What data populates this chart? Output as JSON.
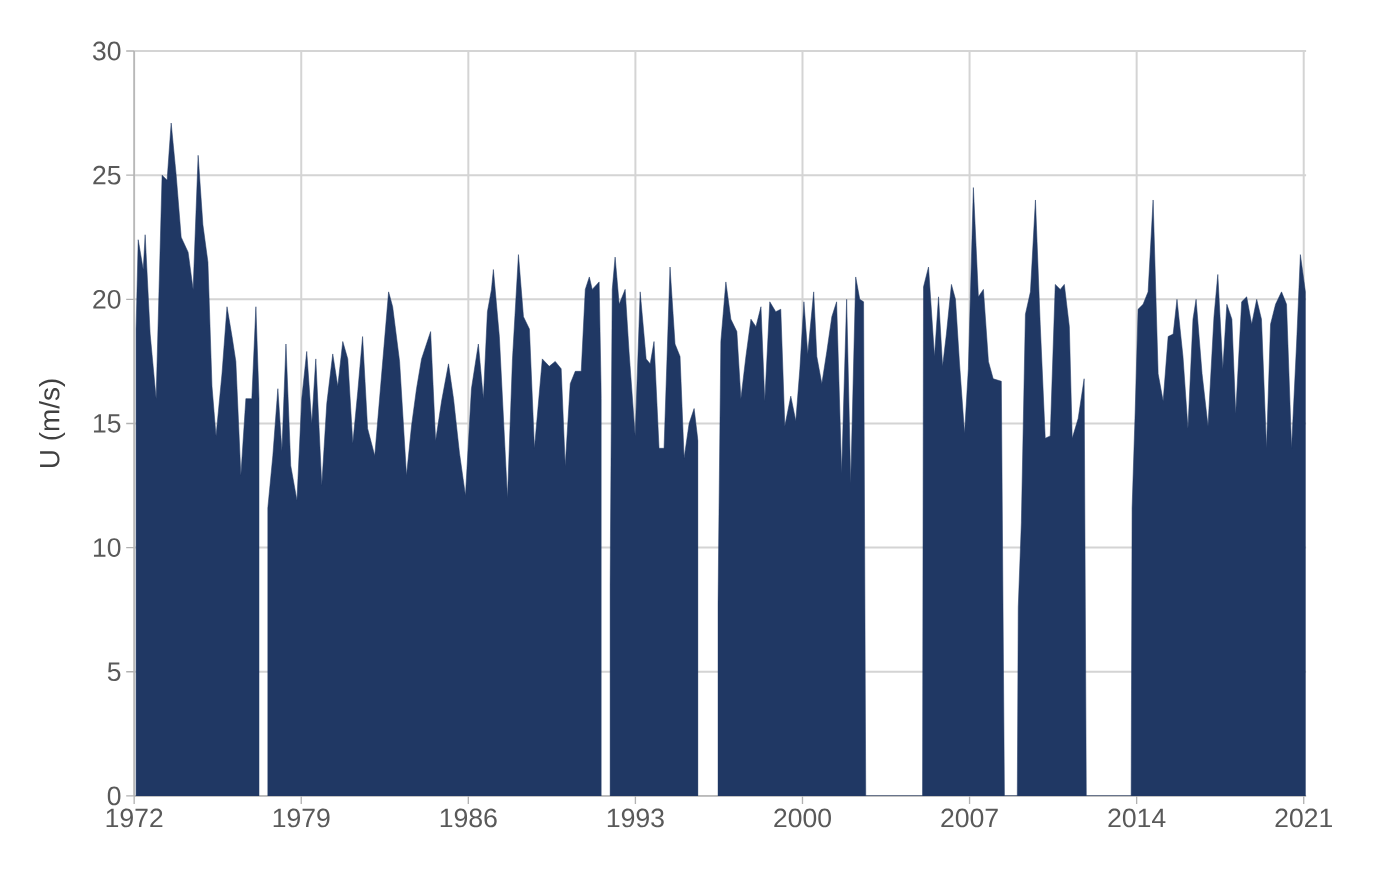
{
  "chart_data": {
    "type": "area",
    "ylabel": "U (m/s)",
    "xlim": [
      1972,
      2021.1
    ],
    "ylim": [
      0,
      30
    ],
    "xticks": [
      1972,
      1979,
      1986,
      1993,
      2000,
      2007,
      2014,
      2021
    ],
    "yticks": [
      0,
      5,
      10,
      15,
      20,
      25,
      30
    ],
    "grid": true,
    "series": [
      {
        "color": "#203864",
        "x": [
          1972.08,
          1972.17,
          1972.38,
          1972.46,
          1972.67,
          1972.92,
          1973.17,
          1973.38,
          1973.55,
          1973.76,
          1973.97,
          1974.26,
          1974.47,
          1974.68,
          1974.88,
          1975.09,
          1975.26,
          1975.43,
          1975.68,
          1975.89,
          1976.1,
          1976.26,
          1976.47,
          1976.68,
          1976.93,
          1977.1,
          1977.23,
          1977.39,
          1977.6,
          1977.81,
          1978.02,
          1978.19,
          1978.36,
          1978.56,
          1978.82,
          1979.02,
          1979.23,
          1979.44,
          1979.61,
          1979.86,
          1980.07,
          1980.32,
          1980.53,
          1980.74,
          1980.95,
          1981.16,
          1981.37,
          1981.57,
          1981.78,
          1982.08,
          1982.66,
          1982.83,
          1983.12,
          1983.41,
          1983.62,
          1983.83,
          1984.04,
          1984.42,
          1984.63,
          1984.88,
          1985.17,
          1985.38,
          1985.63,
          1985.88,
          1986.13,
          1986.42,
          1986.63,
          1986.8,
          1986.97,
          1987.05,
          1987.3,
          1987.64,
          1987.85,
          1988.1,
          1988.31,
          1988.56,
          1988.77,
          1989.1,
          1989.39,
          1989.64,
          1989.89,
          1990.06,
          1990.27,
          1990.48,
          1990.73,
          1990.9,
          1991.07,
          1991.19,
          1991.48,
          1991.57,
          1991.73,
          1991.94,
          1992.03,
          1992.15,
          1992.32,
          1992.57,
          1992.74,
          1992.99,
          1993.2,
          1993.45,
          1993.62,
          1993.78,
          1993.99,
          1994.2,
          1994.45,
          1994.66,
          1994.87,
          1995.04,
          1995.25,
          1995.46,
          1995.62,
          1996.08,
          1996.46,
          1996.58,
          1996.79,
          1997.0,
          1997.25,
          1997.42,
          1997.63,
          1997.84,
          1998.05,
          1998.26,
          1998.42,
          1998.63,
          1998.88,
          1999.09,
          1999.26,
          1999.51,
          1999.72,
          1999.89,
          2000.06,
          2000.22,
          2000.47,
          2000.6,
          2000.81,
          2001.02,
          2001.23,
          2001.43,
          2001.64,
          2001.85,
          2002.02,
          2002.23,
          2002.4,
          2002.56,
          2002.65,
          2005.03,
          2005.07,
          2005.28,
          2005.53,
          2005.7,
          2005.87,
          2006.03,
          2006.24,
          2006.41,
          2006.58,
          2006.79,
          2006.95,
          2007.16,
          2007.37,
          2007.58,
          2007.79,
          2007.99,
          2008.33,
          2008.46,
          2009.0,
          2009.04,
          2009.17,
          2009.34,
          2009.55,
          2009.76,
          2009.96,
          2010.17,
          2010.38,
          2010.59,
          2010.8,
          2010.97,
          2011.18,
          2011.3,
          2011.55,
          2011.8,
          2011.89,
          2013.77,
          2013.81,
          2013.94,
          2014.06,
          2014.27,
          2014.48,
          2014.69,
          2014.9,
          2015.11,
          2015.32,
          2015.53,
          2015.69,
          2015.94,
          2016.15,
          2016.36,
          2016.49,
          2016.74,
          2016.99,
          2017.24,
          2017.4,
          2017.61,
          2017.78,
          2017.99,
          2018.15,
          2018.4,
          2018.61,
          2018.82,
          2019.03,
          2019.23,
          2019.44,
          2019.61,
          2019.82,
          2020.07,
          2020.28,
          2020.49,
          2020.7,
          2020.86,
          2021.07
        ],
        "values": [
          18.8,
          22.4,
          21.2,
          22.6,
          18.6,
          16.0,
          25.0,
          24.8,
          27.1,
          25.0,
          22.5,
          21.9,
          20.4,
          25.8,
          23.0,
          21.5,
          16.5,
          14.5,
          17.0,
          19.7,
          18.5,
          17.5,
          12.9,
          16.0,
          16.0,
          19.7,
          16.0,
          null,
          11.6,
          13.7,
          16.4,
          13.9,
          18.2,
          13.3,
          11.9,
          16.0,
          17.9,
          15.0,
          17.6,
          12.5,
          15.8,
          17.8,
          16.5,
          18.3,
          17.6,
          14.2,
          16.3,
          18.5,
          14.8,
          13.7,
          20.3,
          19.7,
          17.5,
          12.9,
          14.9,
          16.4,
          17.6,
          18.7,
          14.3,
          15.9,
          17.4,
          16.0,
          13.8,
          12.1,
          16.4,
          18.2,
          16.0,
          19.5,
          20.4,
          21.2,
          18.5,
          12.0,
          17.6,
          21.8,
          19.3,
          18.8,
          14.0,
          17.6,
          17.3,
          17.5,
          17.2,
          13.3,
          16.6,
          17.1,
          17.1,
          20.4,
          20.9,
          20.4,
          20.7,
          16.0,
          null,
          8.5,
          20.4,
          21.7,
          19.8,
          20.4,
          17.8,
          14.5,
          20.3,
          17.6,
          17.4,
          18.3,
          14.0,
          14.0,
          21.3,
          18.2,
          17.7,
          13.6,
          15.0,
          15.6,
          14.3,
          null,
          7.7,
          18.3,
          20.7,
          19.2,
          18.7,
          16.0,
          17.7,
          19.2,
          18.9,
          19.7,
          15.9,
          19.9,
          19.5,
          19.6,
          14.9,
          16.1,
          15.1,
          17.2,
          19.9,
          17.8,
          20.3,
          17.7,
          16.6,
          17.9,
          19.3,
          19.9,
          13.0,
          20.0,
          12.6,
          20.9,
          20.0,
          19.9,
          0,
          0,
          20.5,
          21.3,
          17.7,
          20.1,
          17.3,
          18.6,
          20.6,
          20.0,
          17.4,
          14.6,
          17.2,
          24.5,
          20.1,
          20.4,
          17.5,
          16.8,
          16.7,
          0,
          0,
          7.6,
          11.0,
          19.4,
          20.3,
          24.0,
          19.0,
          14.4,
          14.5,
          20.6,
          20.4,
          20.6,
          18.9,
          14.4,
          15.2,
          16.8,
          0,
          0,
          11.6,
          15.5,
          19.6,
          19.8,
          20.3,
          24.0,
          17.0,
          15.9,
          18.5,
          18.6,
          20.0,
          17.7,
          14.8,
          19.2,
          20.0,
          17.0,
          14.9,
          19.3,
          21.0,
          17.2,
          19.8,
          19.2,
          15.4,
          19.9,
          20.1,
          19.0,
          20.0,
          19.2,
          14.0,
          19.0,
          19.8,
          20.3,
          19.8,
          14.0,
          18.2,
          21.8,
          20.3
        ]
      }
    ]
  }
}
